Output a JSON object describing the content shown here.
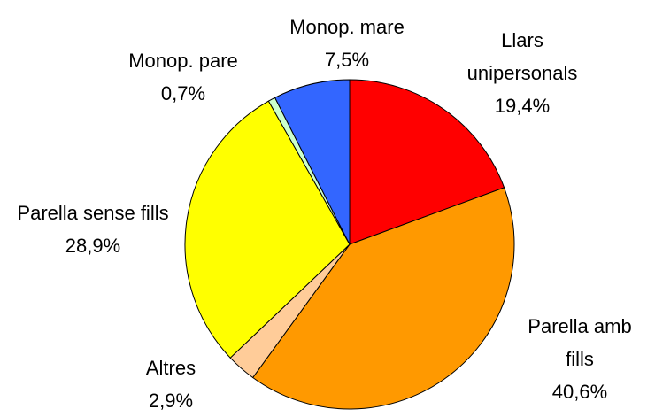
{
  "chart_data": {
    "type": "pie",
    "categories": [
      "Llars unipersonals",
      "Parella amb fills",
      "Altres",
      "Parella sense fills",
      "Monop. pare",
      "Monop. mare"
    ],
    "values": [
      19.4,
      40.6,
      2.9,
      28.9,
      0.7,
      7.5
    ],
    "value_labels": [
      "19,4%",
      "40,6%",
      "2,9%",
      "28,9%",
      "0,7%",
      "7,5%"
    ],
    "colors": [
      "#ff0000",
      "#ff9900",
      "#ffcc99",
      "#ffff00",
      "#ccffcc",
      "#3366ff"
    ]
  }
}
